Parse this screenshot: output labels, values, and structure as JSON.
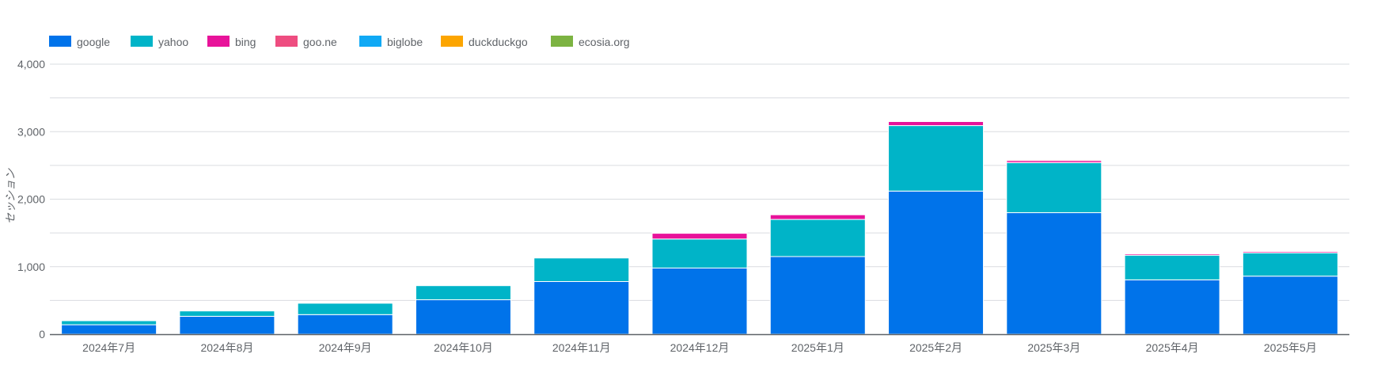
{
  "chart_data": {
    "type": "bar",
    "stacked": true,
    "title": "",
    "xlabel": "",
    "ylabel": "セッション",
    "ylim": [
      0,
      4000
    ],
    "yticks": [
      0,
      1000,
      2000,
      3000,
      4000
    ],
    "ytick_labels": [
      "0",
      "1,000",
      "2,000",
      "3,000",
      "4,000"
    ],
    "grid": true,
    "legend_position": "top-left",
    "categories": [
      "2024年7月",
      "2024年8月",
      "2024年9月",
      "2024年10月",
      "2024年11月",
      "2024年12月",
      "2025年1月",
      "2025年2月",
      "2025年3月",
      "2025年4月",
      "2025年5月"
    ],
    "series": [
      {
        "name": "google",
        "color": "#0073ea",
        "values": [
          140,
          265,
          290,
          510,
          780,
          980,
          1150,
          2120,
          1800,
          805,
          860
        ]
      },
      {
        "name": "yahoo",
        "color": "#00b4c8",
        "values": [
          60,
          80,
          170,
          210,
          350,
          430,
          550,
          970,
          740,
          365,
          345
        ]
      },
      {
        "name": "bing",
        "color": "#e8139a",
        "values": [
          5,
          10,
          10,
          10,
          10,
          85,
          70,
          60,
          30,
          20,
          20
        ]
      },
      {
        "name": "goo.ne",
        "color": "#ee4d80",
        "values": [
          5,
          5,
          10,
          10,
          10,
          10,
          10,
          10,
          15,
          10,
          10
        ]
      },
      {
        "name": "biglobe",
        "color": "#10a9f5",
        "values": [
          2,
          2,
          2,
          2,
          2,
          2,
          2,
          2,
          2,
          2,
          2
        ]
      },
      {
        "name": "duckduckgo",
        "color": "#fca500",
        "values": [
          1,
          1,
          1,
          1,
          1,
          1,
          1,
          1,
          1,
          1,
          1
        ]
      },
      {
        "name": "ecosia.org",
        "color": "#7cb342",
        "values": [
          1,
          1,
          1,
          1,
          1,
          1,
          1,
          1,
          1,
          1,
          1
        ]
      }
    ]
  }
}
